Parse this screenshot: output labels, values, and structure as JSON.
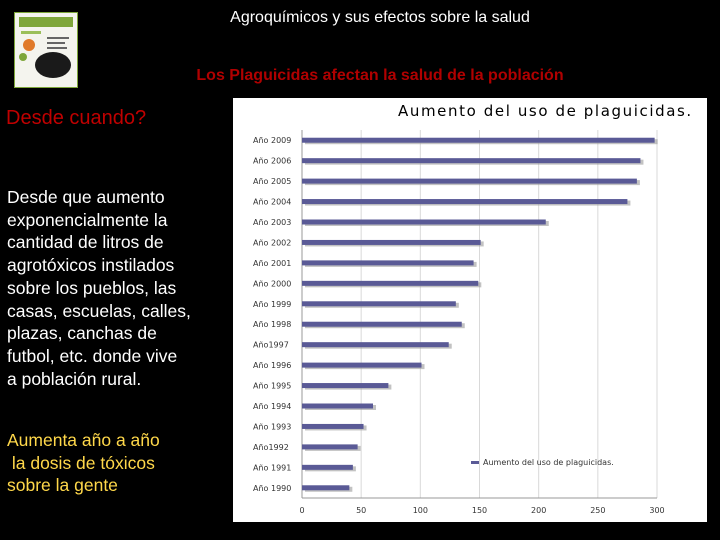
{
  "slide": {
    "title": "Agroquímicos y sus efectos sobre la salud",
    "subtitle": "Los Plaguicidas afectan la salud de la población",
    "heading": "Desde cuando?",
    "body_lines": [
      "Desde que aumento",
      "exponencialmente la",
      "cantidad de litros de",
      "agrotóxicos instilados",
      "sobre los pueblos, las",
      "casas, escuelas, calles,",
      "plazas, canchas de",
      "futbol, etc. donde vive",
      "a población rural."
    ],
    "accent_lines": [
      "Aumenta año a año",
      " la dosis de tóxicos",
      "sobre la gente"
    ],
    "colors": {
      "background": "#000000",
      "subtitle": "#b00000",
      "heading": "#c00000",
      "accent": "#ffd84a",
      "bar": "#5a5a96"
    }
  },
  "chart_data": {
    "type": "bar",
    "orientation": "horizontal",
    "title": "Aumento del uso de plaguicidas.",
    "categories": [
      "Año 2009",
      "Año 2006",
      "Año 2005",
      "Año 2004",
      "Año 2003",
      "Año 2002",
      "Año 2001",
      "Año 2000",
      "Año 1999",
      "Año 1998",
      "Año1997",
      "Año 1996",
      "Año 1995",
      "Año 1994",
      "Año 1993",
      "Año1992",
      "Año 1991",
      "Año 1990"
    ],
    "series": [
      {
        "name": "Aumento del uso de plaguicidas.",
        "values": [
          298,
          286,
          283,
          275,
          206,
          151,
          145,
          149,
          130,
          135,
          124,
          101,
          73,
          60,
          52,
          47,
          43,
          40
        ]
      }
    ],
    "xlim": [
      0,
      300
    ],
    "x_ticks": [
      0,
      50,
      100,
      150,
      200,
      250,
      300
    ],
    "grid": true,
    "legend_position": "bottom-right"
  }
}
